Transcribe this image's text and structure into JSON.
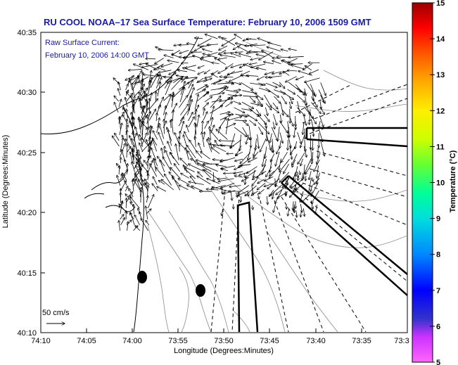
{
  "title": "RU COOL  NOAA–17  Sea Surface Temperature:  February 10, 2006 1509 GMT",
  "current_label": {
    "line1": "Raw Surface Current:",
    "line2": "February 10, 2006 14:00 GMT"
  },
  "axes": {
    "ylabel": "Latitude (Degrees:Minutes)",
    "xlabel": "Longitude (Degrees:Minutes)",
    "yticks": [
      "40:35",
      "40:30",
      "40:25",
      "40:20",
      "40:15",
      "40:10"
    ],
    "xticks": [
      "74:10",
      "74:05",
      "74:00",
      "73:55",
      "73:50",
      "73:45",
      "73:40",
      "73:35",
      "73:3"
    ]
  },
  "colorbar": {
    "label": "Temperature (°C)",
    "ticks": [
      "15",
      "14",
      "13",
      "12",
      "11",
      "10",
      "9",
      "8",
      "7",
      "6",
      "5"
    ],
    "range": [
      5,
      15
    ],
    "colors": [
      "#ff66ff",
      "#3333cc",
      "#0000ff",
      "#00aaff",
      "#00dddd",
      "#00ff88",
      "#66ff33",
      "#ccff00",
      "#ffee00",
      "#ffaa00",
      "#ff5500",
      "#ff0000",
      "#cc0000",
      "#990000"
    ]
  },
  "scale_label": "50 cm/s",
  "chart_data": {
    "type": "map",
    "lat_range": [
      "40:10",
      "40:35"
    ],
    "lon_range": [
      "74:10",
      "73:3"
    ],
    "vector_field": "surface currents",
    "markers": 2
  }
}
